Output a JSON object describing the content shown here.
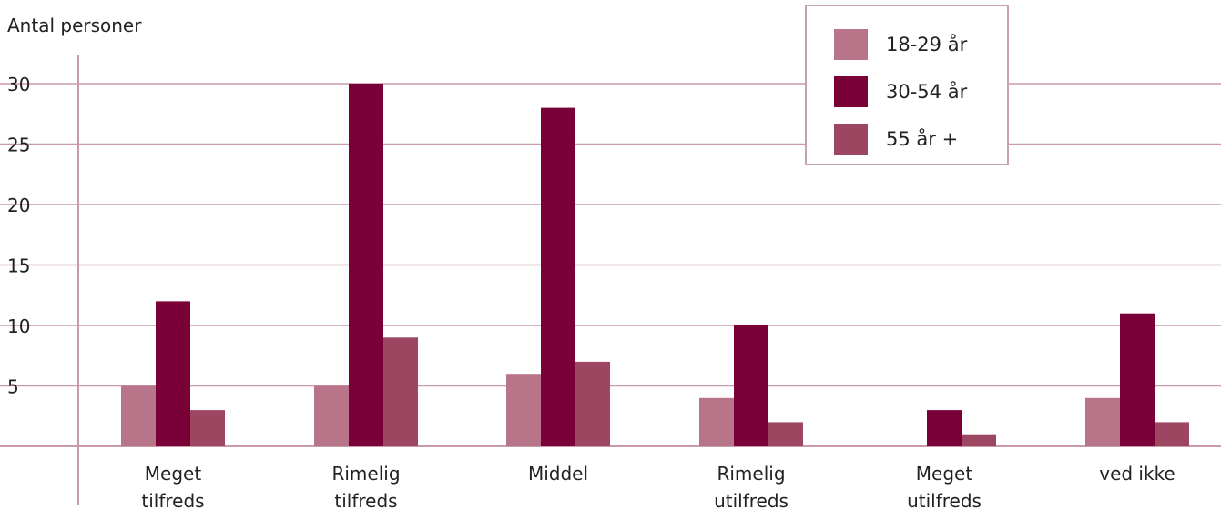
{
  "chart_data": {
    "type": "bar",
    "ylabel": "Antal personer",
    "categories": [
      [
        "Meget",
        "tilfreds"
      ],
      [
        "Rimelig",
        "tilfreds"
      ],
      [
        "Middel"
      ],
      [
        "Rimelig",
        "utilfreds"
      ],
      [
        "Meget",
        "utilfreds"
      ],
      [
        "ved ikke"
      ]
    ],
    "series": [
      {
        "name": "18-29 år",
        "color": "#b87488",
        "values": [
          5,
          5,
          6,
          4,
          0,
          4
        ]
      },
      {
        "name": "30-54 år",
        "color": "#7a0038",
        "values": [
          12,
          30,
          28,
          10,
          3,
          11
        ]
      },
      {
        "name": "55 år +",
        "color": "#9c4662",
        "values": [
          3,
          9,
          7,
          2,
          1,
          2
        ]
      }
    ],
    "yticks": [
      5,
      10,
      15,
      20,
      25,
      30
    ],
    "ylim": [
      0,
      30
    ],
    "grid": true,
    "gridColor": "#c89aac",
    "legend_position": "top-right"
  }
}
